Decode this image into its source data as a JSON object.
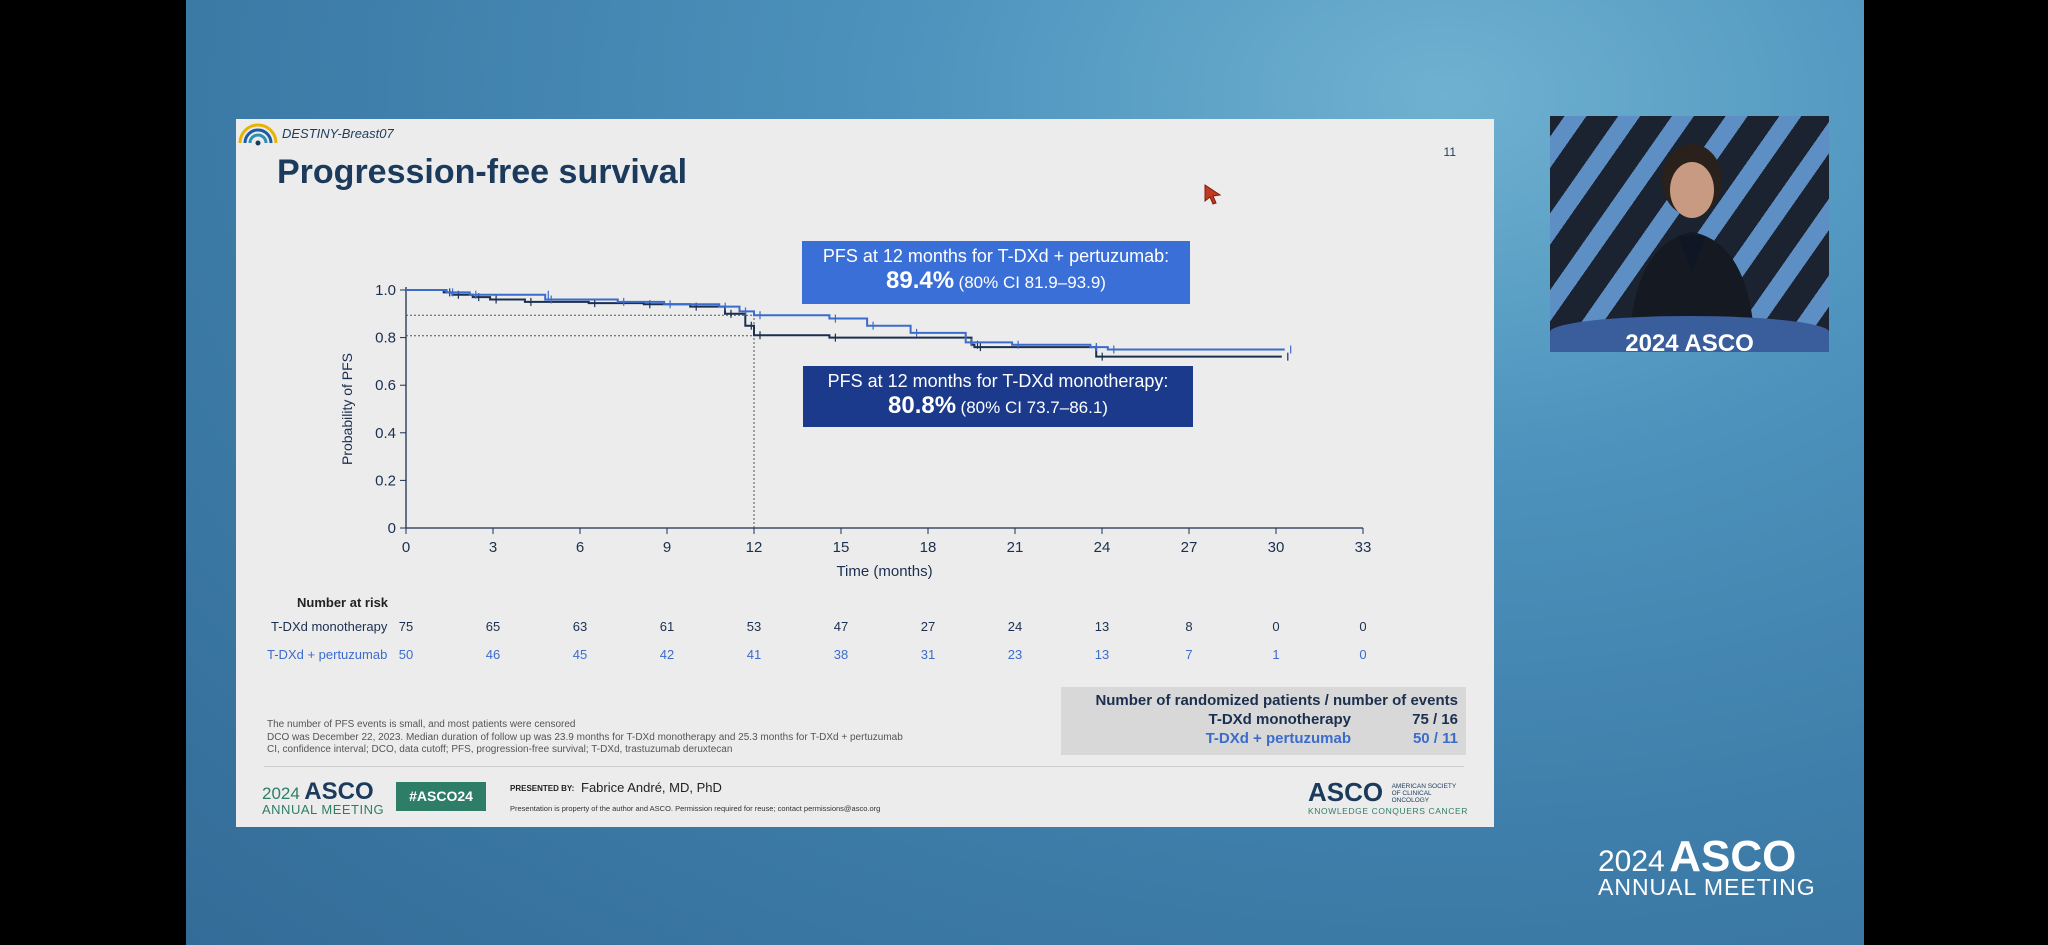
{
  "slide": {
    "trial_name": "DESTINY-Breast07",
    "page_number": "11",
    "title": "Progression-free survival"
  },
  "chart_data": {
    "type": "line",
    "title": "",
    "xlabel": "Time (months)",
    "ylabel": "Probability of PFS",
    "xlim": [
      0,
      33
    ],
    "ylim": [
      0,
      1.0
    ],
    "x_ticks": [
      "0",
      "3",
      "6",
      "9",
      "12",
      "15",
      "18",
      "21",
      "24",
      "27",
      "30",
      "33"
    ],
    "y_ticks": [
      "0",
      "0.2",
      "0.4",
      "0.6",
      "0.8",
      "1.0"
    ],
    "series": [
      {
        "name": "T-DXd monotherapy",
        "color": "#1b2f4f",
        "points": [
          [
            0,
            1.0
          ],
          [
            1.3,
            0.99
          ],
          [
            1.6,
            0.98
          ],
          [
            2.3,
            0.97
          ],
          [
            2.9,
            0.96
          ],
          [
            4.1,
            0.95
          ],
          [
            6.3,
            0.945
          ],
          [
            8.2,
            0.94
          ],
          [
            9.8,
            0.93
          ],
          [
            11,
            0.9
          ],
          [
            11.7,
            0.85
          ],
          [
            12,
            0.81
          ],
          [
            14.6,
            0.8
          ],
          [
            19.5,
            0.77
          ],
          [
            19.6,
            0.76
          ],
          [
            23.6,
            0.76
          ],
          [
            23.8,
            0.72
          ],
          [
            30.2,
            0.72
          ]
        ]
      },
      {
        "name": "T-DXd + pertuzumab",
        "color": "#3c6ccb",
        "points": [
          [
            0,
            1.0
          ],
          [
            1.4,
            0.99
          ],
          [
            2.2,
            0.98
          ],
          [
            4.7,
            0.98
          ],
          [
            4.8,
            0.96
          ],
          [
            7.3,
            0.95
          ],
          [
            8.9,
            0.94
          ],
          [
            10.8,
            0.93
          ],
          [
            11.5,
            0.91
          ],
          [
            12,
            0.894
          ],
          [
            14.6,
            0.88
          ],
          [
            15.9,
            0.85
          ],
          [
            17.4,
            0.82
          ],
          [
            19.3,
            0.78
          ],
          [
            20.9,
            0.77
          ],
          [
            23.6,
            0.76
          ],
          [
            24.2,
            0.75
          ],
          [
            30.3,
            0.75
          ]
        ]
      }
    ],
    "annotations": [
      {
        "text": "PFS at 12 months for T-DXd + pertuzumab:",
        "value": "89.4%",
        "ci": "(80% CI 81.9–93.9)"
      },
      {
        "text": "PFS at 12 months for T-DXd monotherapy:",
        "value": "80.8%",
        "ci": "(80% CI 73.7–86.1)"
      }
    ],
    "reference_lines": {
      "x": 12,
      "y": [
        0.894,
        0.808
      ]
    }
  },
  "risk_table": {
    "title": "Number at risk",
    "rows": [
      {
        "label": "T-DXd monotherapy",
        "values": [
          "75",
          "65",
          "63",
          "61",
          "53",
          "47",
          "27",
          "24",
          "13",
          "8",
          "0",
          "0"
        ]
      },
      {
        "label": "T-DXd + pertuzumab",
        "values": [
          "50",
          "46",
          "45",
          "42",
          "41",
          "38",
          "31",
          "23",
          "13",
          "7",
          "1",
          "0"
        ]
      }
    ]
  },
  "events": {
    "header": "Number of randomized patients / number of events",
    "rows": [
      {
        "label": "T-DXd monotherapy",
        "value": "75 / 16"
      },
      {
        "label": "T-DXd + pertuzumab",
        "value": "50 / 11"
      }
    ]
  },
  "footnotes": [
    "The number of PFS events is small, and most patients were censored",
    "DCO was December 22, 2023. Median duration of follow up was 23.9 months for T-DXd monotherapy and 25.3 months for T-DXd + pertuzumab",
    "CI, confidence interval; DCO, data cutoff; PFS, progression-free survival; T-DXd, trastuzumab deruxtecan"
  ],
  "footer": {
    "year": "2024",
    "asco": "ASCO",
    "annual": "ANNUAL MEETING",
    "hashtag": "#ASCO24",
    "presented_by": "PRESENTED BY:",
    "presenter": "Fabrice André, MD, PhD",
    "disclaimer": "Presentation is property of the author and ASCO. Permission required for reuse; contact permissions@asco.org",
    "society": "AMERICAN SOCIETY OF CLINICAL ONCOLOGY",
    "tagline": "KNOWLEDGE CONQUERS CANCER"
  },
  "video": {
    "podium_text": "2024 ASCO"
  },
  "branding": {
    "year": "2024",
    "asco": "ASCO",
    "annual": "ANNUAL MEETING"
  }
}
